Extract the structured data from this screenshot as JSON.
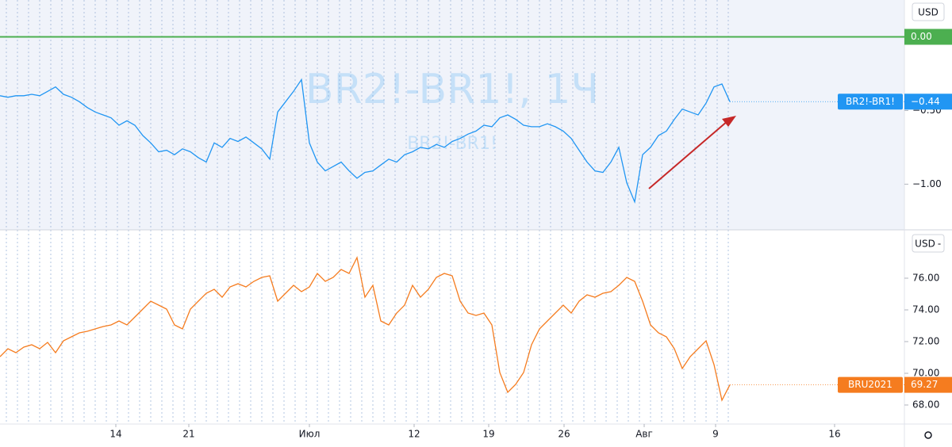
{
  "chart_data": [
    {
      "type": "line",
      "title": "BR2!-BR1!, 1Ч",
      "subtitle": "BR2!-BR1!",
      "unit": "USD",
      "x": [
        0,
        1,
        2,
        3,
        4,
        5,
        6,
        7,
        8,
        9,
        10,
        11,
        12,
        13,
        14,
        15,
        16,
        17,
        18,
        19,
        20,
        21,
        22,
        23,
        24,
        25,
        26,
        27,
        28,
        29,
        30,
        31,
        32,
        33,
        34,
        35,
        36,
        37,
        38,
        39,
        40,
        41,
        42,
        43,
        44,
        45,
        46,
        47,
        48,
        49,
        50,
        51,
        52,
        53,
        54,
        55,
        56,
        57,
        58,
        59,
        60,
        61,
        62,
        63,
        64,
        65,
        66,
        67,
        68,
        69,
        70,
        71,
        72,
        73,
        74,
        75,
        76,
        77,
        78,
        79,
        80,
        81,
        82,
        83,
        84,
        85,
        86,
        87,
        88,
        89,
        90,
        91,
        92
      ],
      "series": [
        {
          "name": "BR2!-BR1!",
          "color": "#2196f3",
          "last_value_label": "−0.44",
          "values": [
            -0.4,
            -0.41,
            -0.4,
            -0.4,
            -0.39,
            -0.4,
            -0.37,
            -0.34,
            -0.39,
            -0.41,
            -0.44,
            -0.48,
            -0.51,
            -0.53,
            -0.55,
            -0.6,
            -0.57,
            -0.6,
            -0.67,
            -0.72,
            -0.78,
            -0.77,
            -0.8,
            -0.76,
            -0.78,
            -0.82,
            -0.85,
            -0.72,
            -0.75,
            -0.69,
            -0.71,
            -0.68,
            -0.72,
            -0.76,
            -0.83,
            -0.51,
            -0.44,
            -0.37,
            -0.29,
            -0.72,
            -0.85,
            -0.91,
            -0.88,
            -0.85,
            -0.91,
            -0.96,
            -0.92,
            -0.91,
            -0.87,
            -0.83,
            -0.85,
            -0.8,
            -0.78,
            -0.75,
            -0.76,
            -0.73,
            -0.75,
            -0.71,
            -0.69,
            -0.66,
            -0.64,
            -0.6,
            -0.61,
            -0.55,
            -0.53,
            -0.56,
            -0.6,
            -0.61,
            -0.61,
            -0.59,
            -0.61,
            -0.64,
            -0.69,
            -0.77,
            -0.85,
            -0.91,
            -0.92,
            -0.85,
            -0.75,
            -0.99,
            -1.12,
            -0.8,
            -0.75,
            -0.67,
            -0.64,
            -0.56,
            -0.49,
            -0.51,
            -0.53,
            -0.45,
            -0.34,
            -0.32,
            -0.44
          ]
        }
      ],
      "hlines": [
        {
          "value": 0,
          "label": "0.00",
          "color": "#4caf50"
        }
      ],
      "xlim": [
        0,
        114
      ],
      "ylim": [
        -1.31,
        0.25
      ],
      "yticks": [
        {
          "value": -0.5,
          "label": "−0.50"
        },
        {
          "value": -1,
          "label": "−1.00"
        }
      ]
    },
    {
      "type": "line",
      "unit": "USD",
      "x": [
        0,
        1,
        2,
        3,
        4,
        5,
        6,
        7,
        8,
        9,
        10,
        11,
        12,
        13,
        14,
        15,
        16,
        17,
        18,
        19,
        20,
        21,
        22,
        23,
        24,
        25,
        26,
        27,
        28,
        29,
        30,
        31,
        32,
        33,
        34,
        35,
        36,
        37,
        38,
        39,
        40,
        41,
        42,
        43,
        44,
        45,
        46,
        47,
        48,
        49,
        50,
        51,
        52,
        53,
        54,
        55,
        56,
        57,
        58,
        59,
        60,
        61,
        62,
        63,
        64,
        65,
        66,
        67,
        68,
        69,
        70,
        71,
        72,
        73,
        74,
        75,
        76,
        77,
        78,
        79,
        80,
        81,
        82,
        83,
        84,
        85,
        86,
        87,
        88,
        89,
        90,
        91,
        92
      ],
      "series": [
        {
          "name": "BRU2021",
          "color": "#f57c1f",
          "last_value_label": "69.27",
          "values": [
            71.05,
            71.55,
            71.3,
            71.65,
            71.8,
            71.55,
            71.95,
            71.3,
            72.05,
            72.3,
            72.55,
            72.65,
            72.8,
            72.95,
            73.05,
            73.3,
            73.05,
            73.55,
            74.05,
            74.55,
            74.3,
            74.05,
            73.05,
            72.8,
            74.05,
            74.55,
            75.05,
            75.3,
            74.8,
            75.45,
            75.65,
            75.45,
            75.8,
            76.05,
            76.15,
            74.55,
            75.05,
            75.55,
            75.15,
            75.45,
            76.3,
            75.8,
            76.05,
            76.55,
            76.3,
            77.3,
            74.8,
            75.55,
            73.3,
            73.05,
            73.8,
            74.3,
            75.55,
            74.8,
            75.3,
            76.05,
            76.3,
            76.15,
            74.55,
            73.8,
            73.65,
            73.8,
            73.05,
            70.05,
            68.8,
            69.3,
            70.05,
            71.8,
            72.8,
            73.3,
            73.8,
            74.3,
            73.8,
            74.55,
            74.95,
            74.8,
            75.05,
            75.15,
            75.55,
            76.05,
            75.8,
            74.55,
            73.05,
            72.55,
            72.3,
            71.55,
            70.3,
            71.05,
            71.55,
            72.05,
            70.55,
            68.3,
            69.27
          ]
        }
      ],
      "xlim": [
        0,
        114
      ],
      "ylim": [
        66.8,
        79.05
      ],
      "yticks": [
        {
          "value": 68,
          "label": "68.00"
        },
        {
          "value": 70,
          "label": "70.00"
        },
        {
          "value": 72,
          "label": "72.00"
        },
        {
          "value": 74,
          "label": "74.00"
        },
        {
          "value": 76,
          "label": "76.00"
        }
      ],
      "xticks": [
        {
          "value": 14.6,
          "label": "14"
        },
        {
          "value": 23.8,
          "label": "21"
        },
        {
          "value": 39,
          "label": "Июл"
        },
        {
          "value": 52.2,
          "label": "12"
        },
        {
          "value": 61.6,
          "label": "19"
        },
        {
          "value": 71.1,
          "label": "26"
        },
        {
          "value": 81.2,
          "label": "Авг"
        },
        {
          "value": 90.2,
          "label": "9"
        },
        {
          "value": 105.2,
          "label": "16"
        }
      ]
    }
  ]
}
